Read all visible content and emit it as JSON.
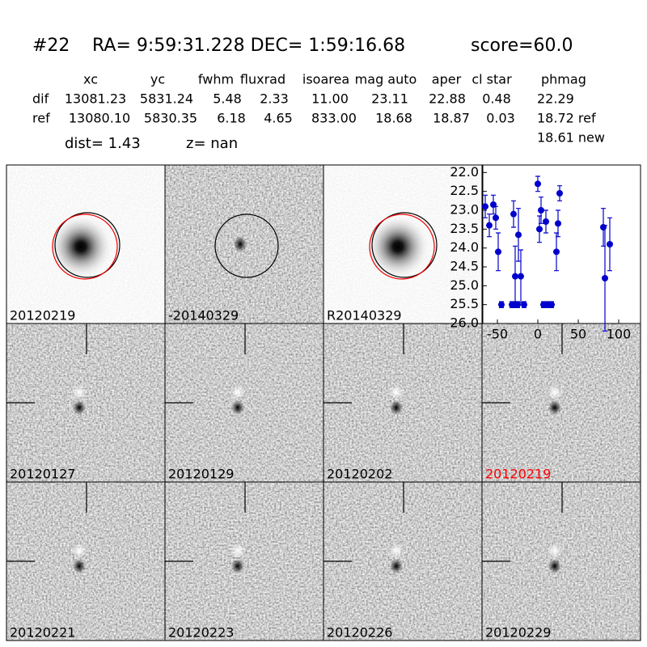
{
  "header": {
    "id": "#22",
    "coords": "RA= 9:59:31.228 DEC= 1:59:16.68",
    "score": "score=60.0"
  },
  "table": {
    "columns": [
      "xc",
      "yc",
      "fwhm",
      "fluxrad",
      "isoarea",
      "mag auto",
      "aper",
      "cl star",
      "phmag"
    ],
    "rows": [
      [
        "dif",
        "13081.23",
        "5831.24",
        "5.48",
        "2.33",
        "11.00",
        "23.11",
        "22.88",
        "0.48",
        "22.29"
      ],
      [
        "ref",
        "13080.10",
        "5830.35",
        "6.18",
        "4.65",
        "833.00",
        "18.68",
        "18.87",
        "0.03",
        "18.72 ref"
      ]
    ],
    "extra": "18.61 new"
  },
  "stats": {
    "dist": "dist=  1.43",
    "z": "z=   nan"
  },
  "panels": [
    {
      "label": "20120219",
      "color": "#000000"
    },
    {
      "label": "-20140329",
      "color": "#000000"
    },
    {
      "label": "R20140329",
      "color": "#000000"
    },
    {
      "label": "20120127",
      "color": "#000000"
    },
    {
      "label": "20120129",
      "color": "#000000"
    },
    {
      "label": "20120202",
      "color": "#000000"
    },
    {
      "label": "20120219",
      "color": "#ff0000"
    },
    {
      "label": "20120221",
      "color": "#000000"
    },
    {
      "label": "20120223",
      "color": "#000000"
    },
    {
      "label": "20120226",
      "color": "#000000"
    },
    {
      "label": "20120229",
      "color": "#000000"
    }
  ],
  "chart_data": {
    "type": "scatter",
    "y_inverted": true,
    "x": [
      -65,
      -60,
      -55,
      -52,
      -49,
      -45,
      -32,
      -30,
      -28,
      -28,
      -25,
      -24,
      -21,
      -17,
      0,
      2,
      4,
      7,
      10,
      12,
      17,
      23,
      25,
      27,
      81,
      83,
      89
    ],
    "series": [
      {
        "color": "#0000cc",
        "values": [
          22.9,
          23.4,
          22.85,
          23.2,
          24.1,
          25.5,
          25.5,
          23.1,
          24.75,
          25.5,
          25.5,
          23.65,
          24.75,
          25.5,
          22.3,
          23.5,
          23.0,
          25.5,
          23.3,
          25.5,
          25.5,
          24.1,
          23.35,
          22.55,
          23.45,
          24.8,
          23.9
        ],
        "errors": [
          0.3,
          0.3,
          0.25,
          0.3,
          0.5,
          0.08,
          0.08,
          0.35,
          0.8,
          0.08,
          0.08,
          0.7,
          0.7,
          0.08,
          0.2,
          0.35,
          0.35,
          0.08,
          0.3,
          0.08,
          0.08,
          0.5,
          0.35,
          0.2,
          0.5,
          1.4,
          0.7
        ]
      }
    ],
    "xlim": [
      -68,
      127
    ],
    "ylim": [
      21.8,
      26.0
    ],
    "xticks": [
      -50,
      0,
      50,
      100
    ],
    "yticks": [
      {
        "value": 22,
        "label": "22.0"
      },
      {
        "value": 22.5,
        "label": "22.5"
      },
      {
        "value": 23,
        "label": "23.0"
      },
      {
        "value": 23.5,
        "label": "23.5"
      },
      {
        "value": 24,
        "label": "24.0"
      },
      {
        "value": 24.5,
        "label": "24.5"
      },
      {
        "value": 25,
        "label": "25.0"
      },
      {
        "value": 25.5,
        "label": "25.5"
      },
      {
        "value": 26,
        "label": "26.0"
      }
    ]
  }
}
